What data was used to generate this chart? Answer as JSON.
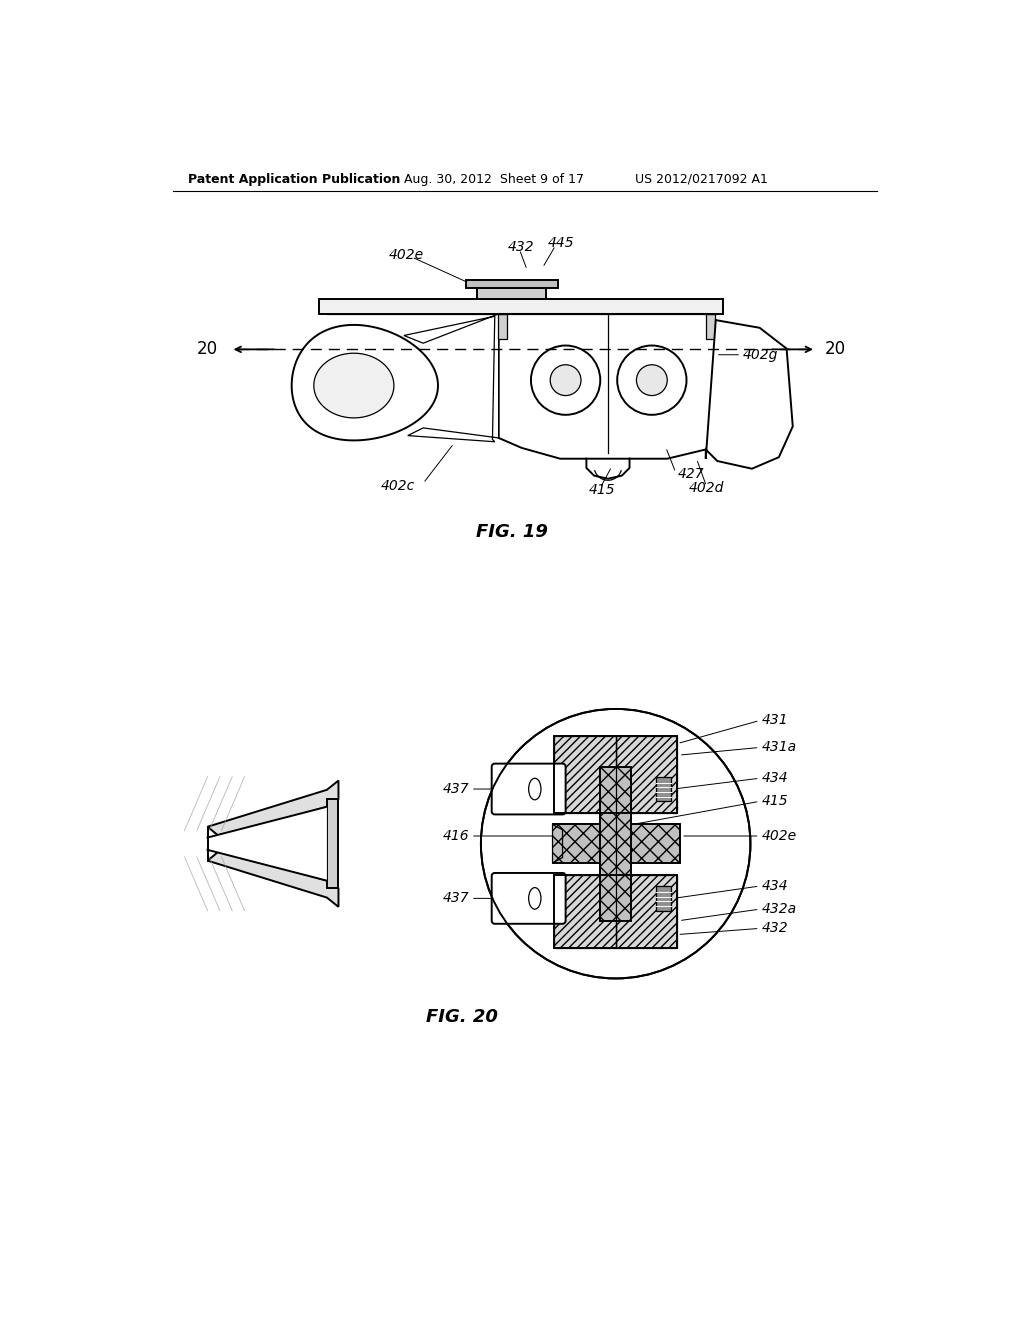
{
  "bg_color": "#ffffff",
  "header_left": "Patent Application Publication",
  "header_mid": "Aug. 30, 2012  Sheet 9 of 17",
  "header_right": "US 2012/0217092 A1",
  "fig19_caption": "FIG. 19",
  "fig20_caption": "FIG. 20",
  "line_color": "#000000",
  "light_gray": "#d8d8d8",
  "mid_gray": "#b0b0b0",
  "dark_gray": "#888888"
}
